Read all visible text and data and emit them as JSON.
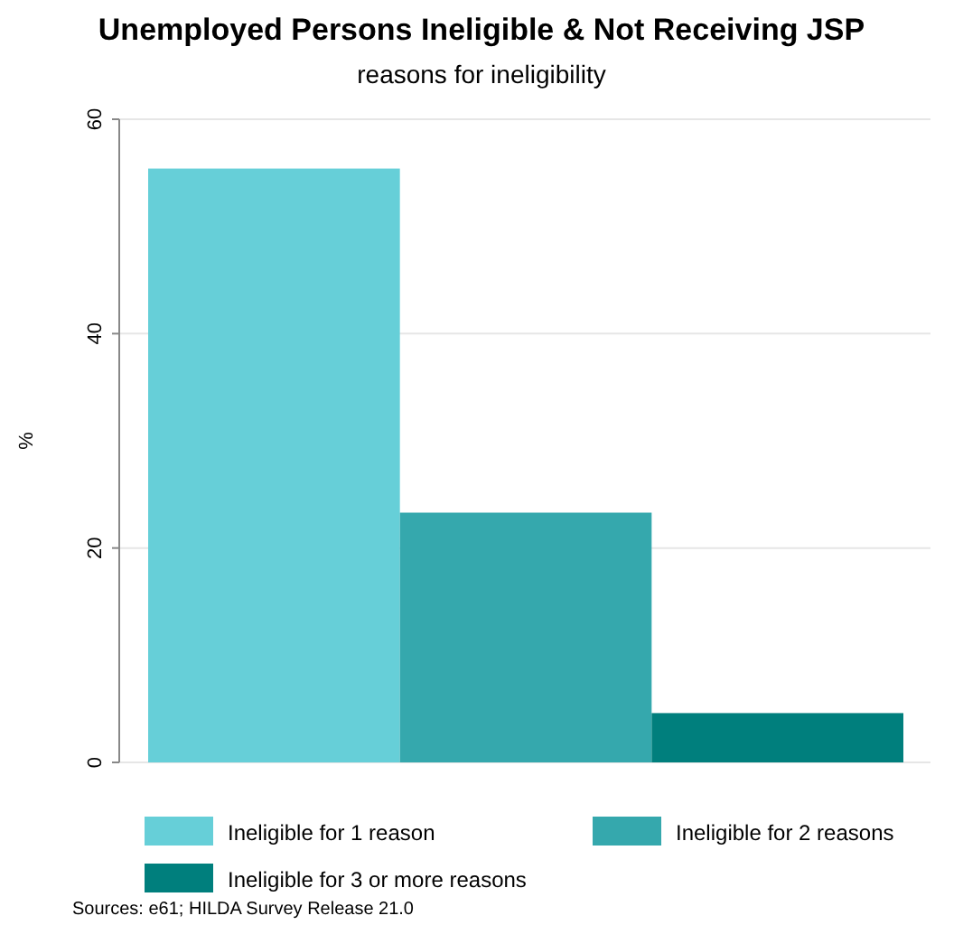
{
  "chart_data": {
    "type": "bar",
    "title": "Unemployed Persons Ineligible & Not Receiving JSP",
    "subtitle": "reasons for ineligibility",
    "ylabel": "%",
    "categories": [
      null,
      null,
      null
    ],
    "series": [
      {
        "name": "Ineligible for 1 reason",
        "color": "#66cfd8",
        "values": [
          55.4,
          null,
          null
        ]
      },
      {
        "name": "Ineligible for 2 reasons",
        "color": "#35a8ad",
        "values": [
          null,
          23.3,
          null
        ]
      },
      {
        "name": "Ineligible for 3 or more reasons",
        "color": "#007f7d",
        "values": [
          null,
          null,
          4.6
        ]
      }
    ],
    "ylim": [
      0,
      60
    ],
    "yticks": [
      0,
      20,
      40,
      60
    ],
    "grid": "y",
    "legend": "bottom",
    "annotations": [
      "Sources: e61; HILDA Survey Release 21.0"
    ]
  }
}
